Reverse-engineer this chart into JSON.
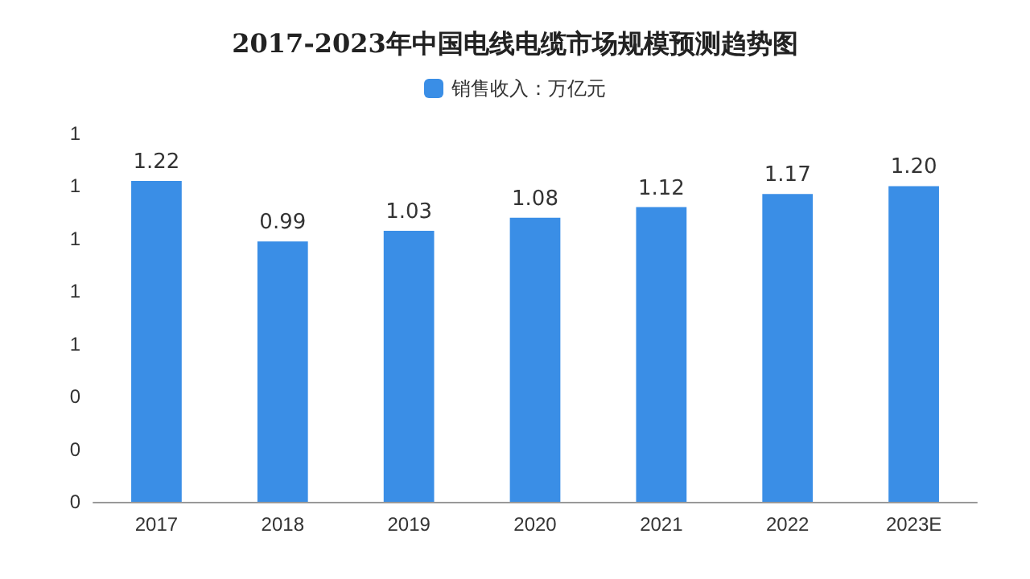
{
  "chart_data": {
    "type": "bar",
    "title": "2017-2023年中国电线电缆市场规模预测趋势图",
    "categories": [
      "2017",
      "2018",
      "2019",
      "2020",
      "2021",
      "2022",
      "2023E"
    ],
    "series": [
      {
        "name": "销售收入：万亿元",
        "color": "#3a8ee6",
        "values": [
          1.22,
          0.99,
          1.03,
          1.08,
          1.12,
          1.17,
          1.2
        ]
      }
    ],
    "ylim": [
      0,
      1.4
    ],
    "yticks": [
      {
        "value": 0,
        "label": "0"
      },
      {
        "value": 0.2,
        "label": "0"
      },
      {
        "value": 0.4,
        "label": "0"
      },
      {
        "value": 0.6,
        "label": "1"
      },
      {
        "value": 0.8,
        "label": "1"
      },
      {
        "value": 1.0,
        "label": "1"
      },
      {
        "value": 1.2,
        "label": "1"
      },
      {
        "value": 1.4,
        "label": "1"
      }
    ],
    "value_labels": [
      "1.22",
      "0.99",
      "1.03",
      "1.08",
      "1.12",
      "1.17",
      "1.20"
    ],
    "legend": "top",
    "grid": false
  }
}
